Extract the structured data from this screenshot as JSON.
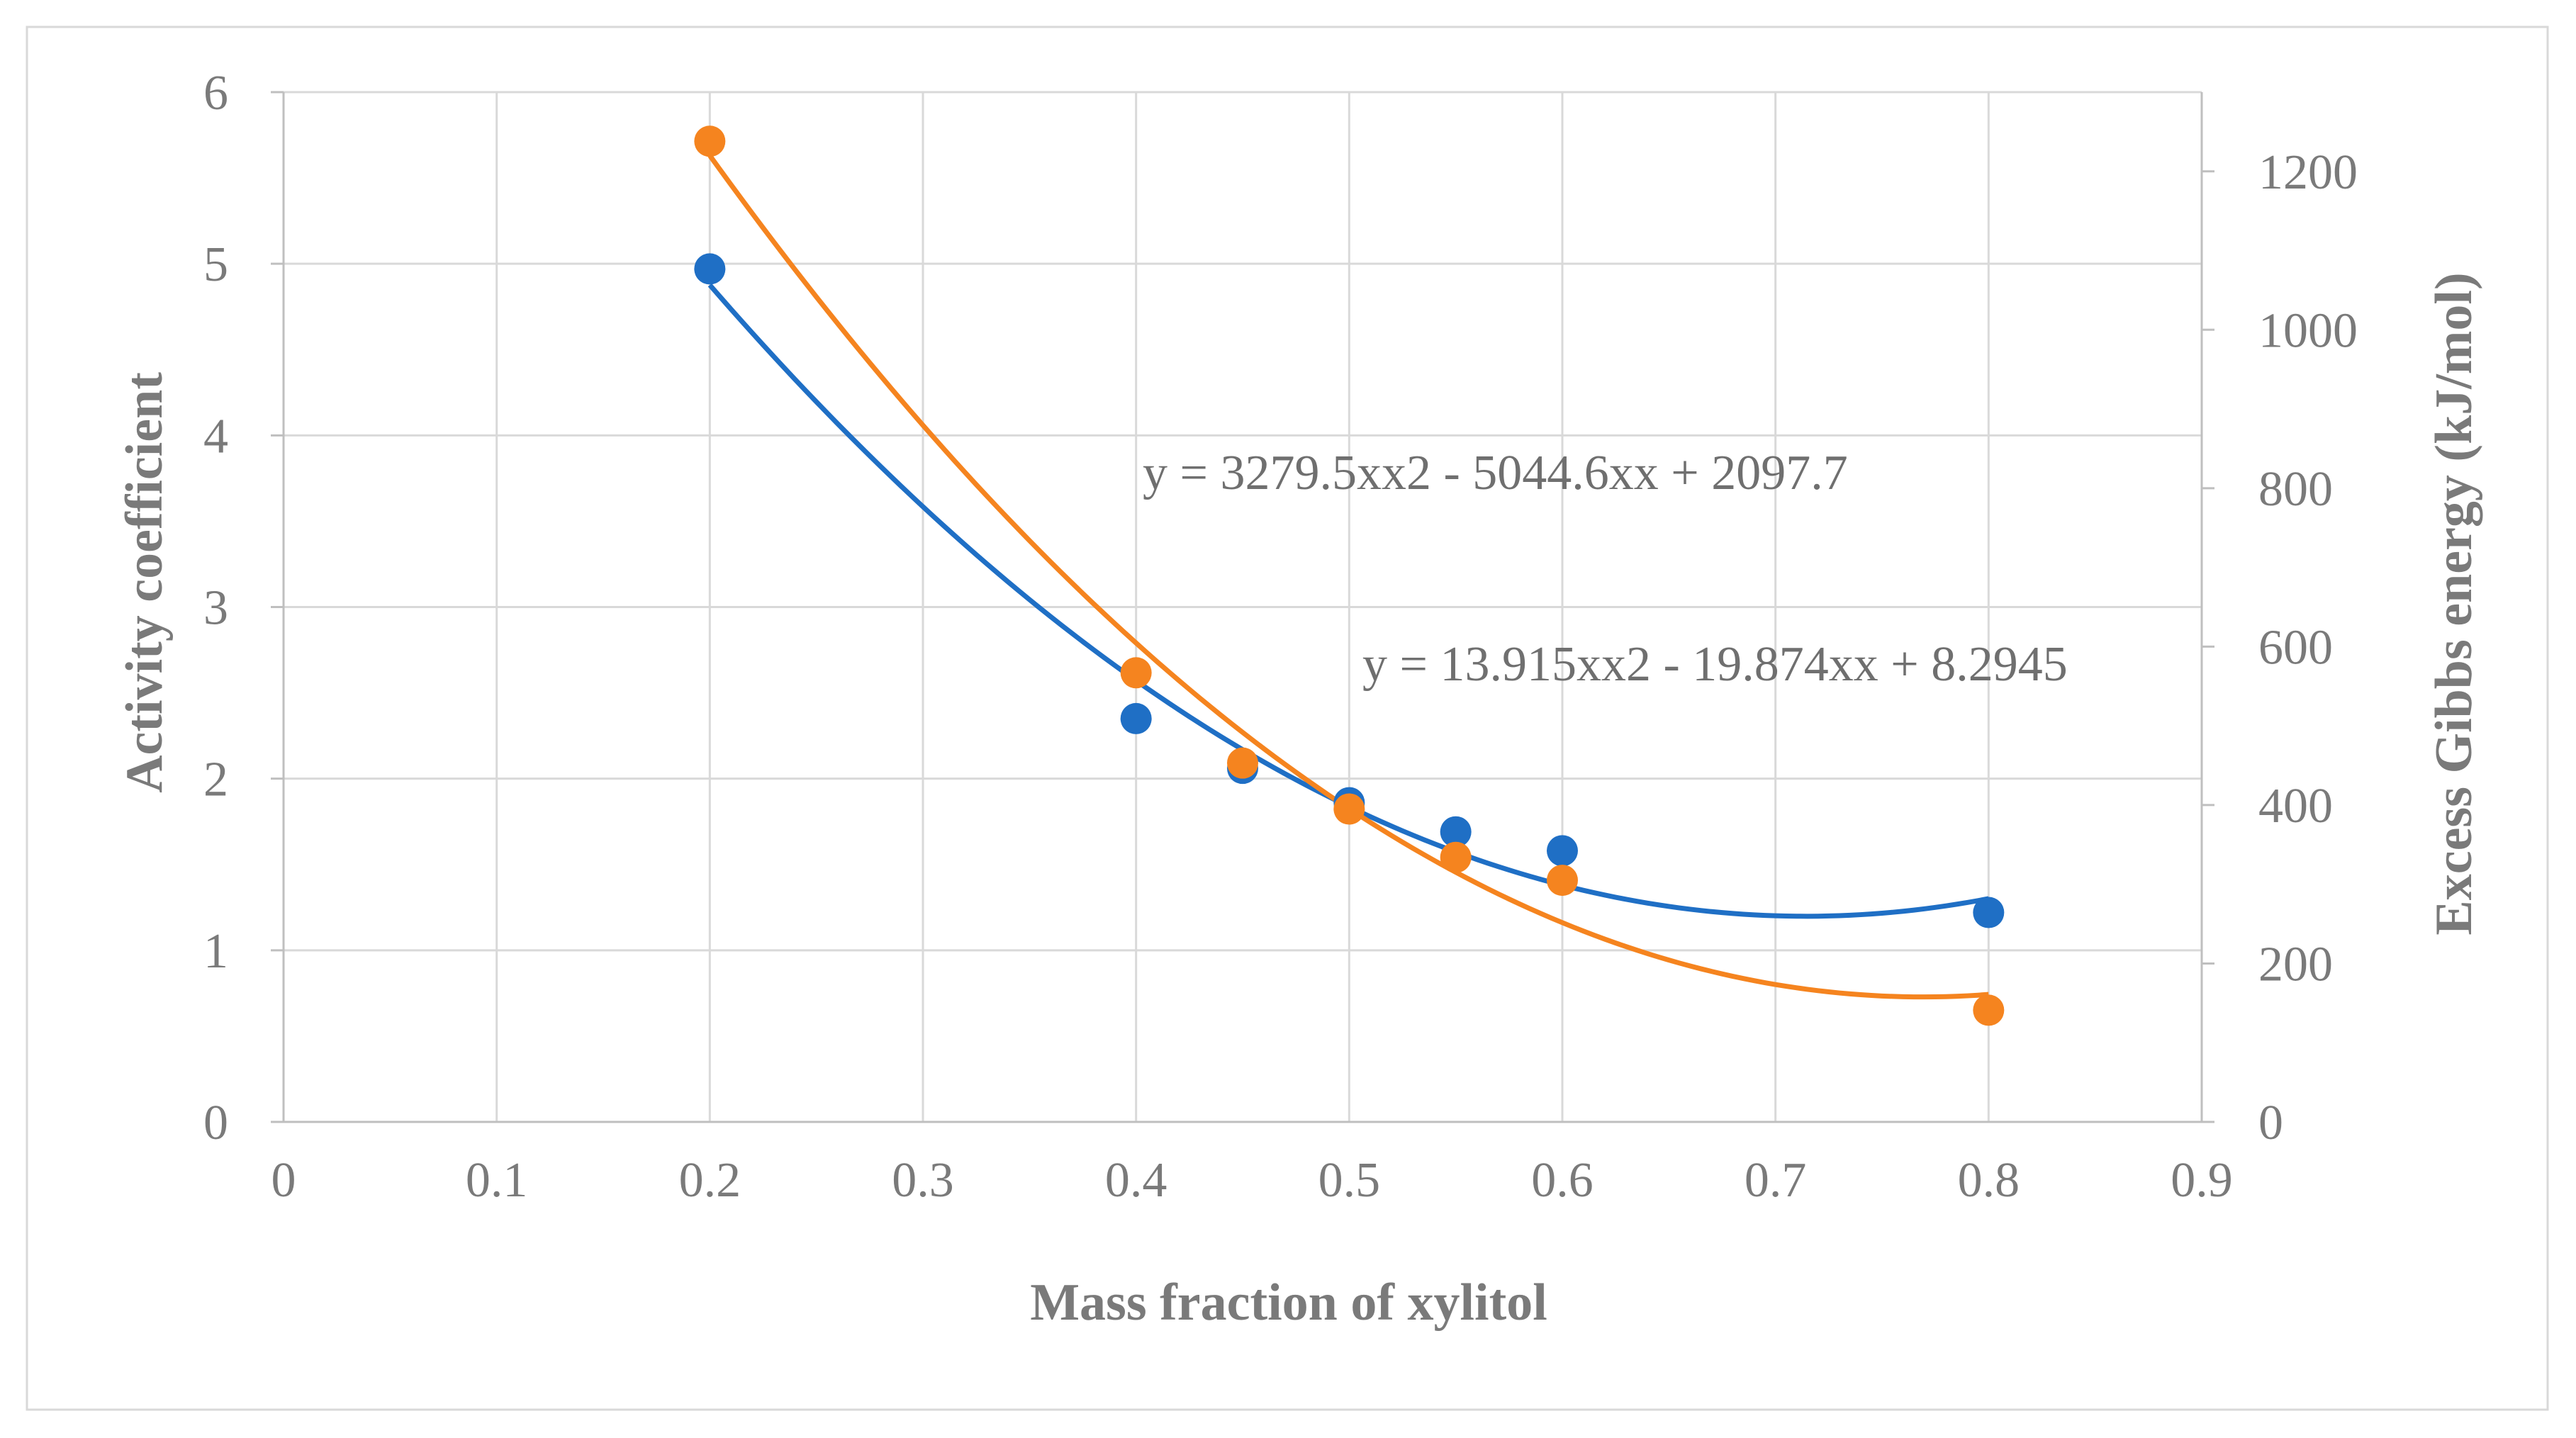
{
  "chart_data": {
    "type": "scatter",
    "title": "",
    "xlabel": "Mass fraction of xylitol",
    "ylabel": "Activity coefficient",
    "y2label": "Excess Gibbs energy (kJ/mol)",
    "xlim": [
      0,
      0.9
    ],
    "ylim": [
      0,
      6
    ],
    "y2lim": [
      0,
      1300
    ],
    "x_ticks": [
      "0",
      "0.1",
      "0.2",
      "0.3",
      "0.4",
      "0.5",
      "0.6",
      "0.7",
      "0.8",
      "0.9"
    ],
    "y_ticks": [
      "0",
      "1",
      "2",
      "3",
      "4",
      "5",
      "6"
    ],
    "y2_ticks": [
      "0",
      "200",
      "400",
      "600",
      "800",
      "1000",
      "1200"
    ],
    "grid": true,
    "series": [
      {
        "name": "Activity coefficient",
        "axis": "left",
        "color": "#1f6fc5",
        "x": [
          0.2,
          0.4,
          0.45,
          0.5,
          0.55,
          0.6,
          0.8
        ],
        "y": [
          4.97,
          2.35,
          2.06,
          1.86,
          1.69,
          1.58,
          1.22
        ],
        "trendline": {
          "type": "poly2",
          "coefficients": [
            13.915,
            -19.874,
            8.2945
          ],
          "x_range": [
            0.2,
            0.8
          ]
        }
      },
      {
        "name": "Excess Gibbs energy",
        "axis": "right",
        "color": "#f5841f",
        "x": [
          0.2,
          0.4,
          0.45,
          0.5,
          0.55,
          0.6,
          0.8
        ],
        "y": [
          1238,
          567,
          453,
          395,
          334,
          305,
          141
        ],
        "trendline": {
          "type": "poly2",
          "coefficients": [
            3279.5,
            -5044.6,
            2097.7
          ],
          "x_range": [
            0.2,
            0.8
          ]
        }
      }
    ],
    "annotations": [
      {
        "text": "y = 3279.5xx2 - 5044.6xx + 2097.7",
        "series": "Excess Gibbs energy"
      },
      {
        "text": "y = 13.915xx2 - 19.874xx + 8.2945",
        "series": "Activity coefficient"
      }
    ]
  }
}
